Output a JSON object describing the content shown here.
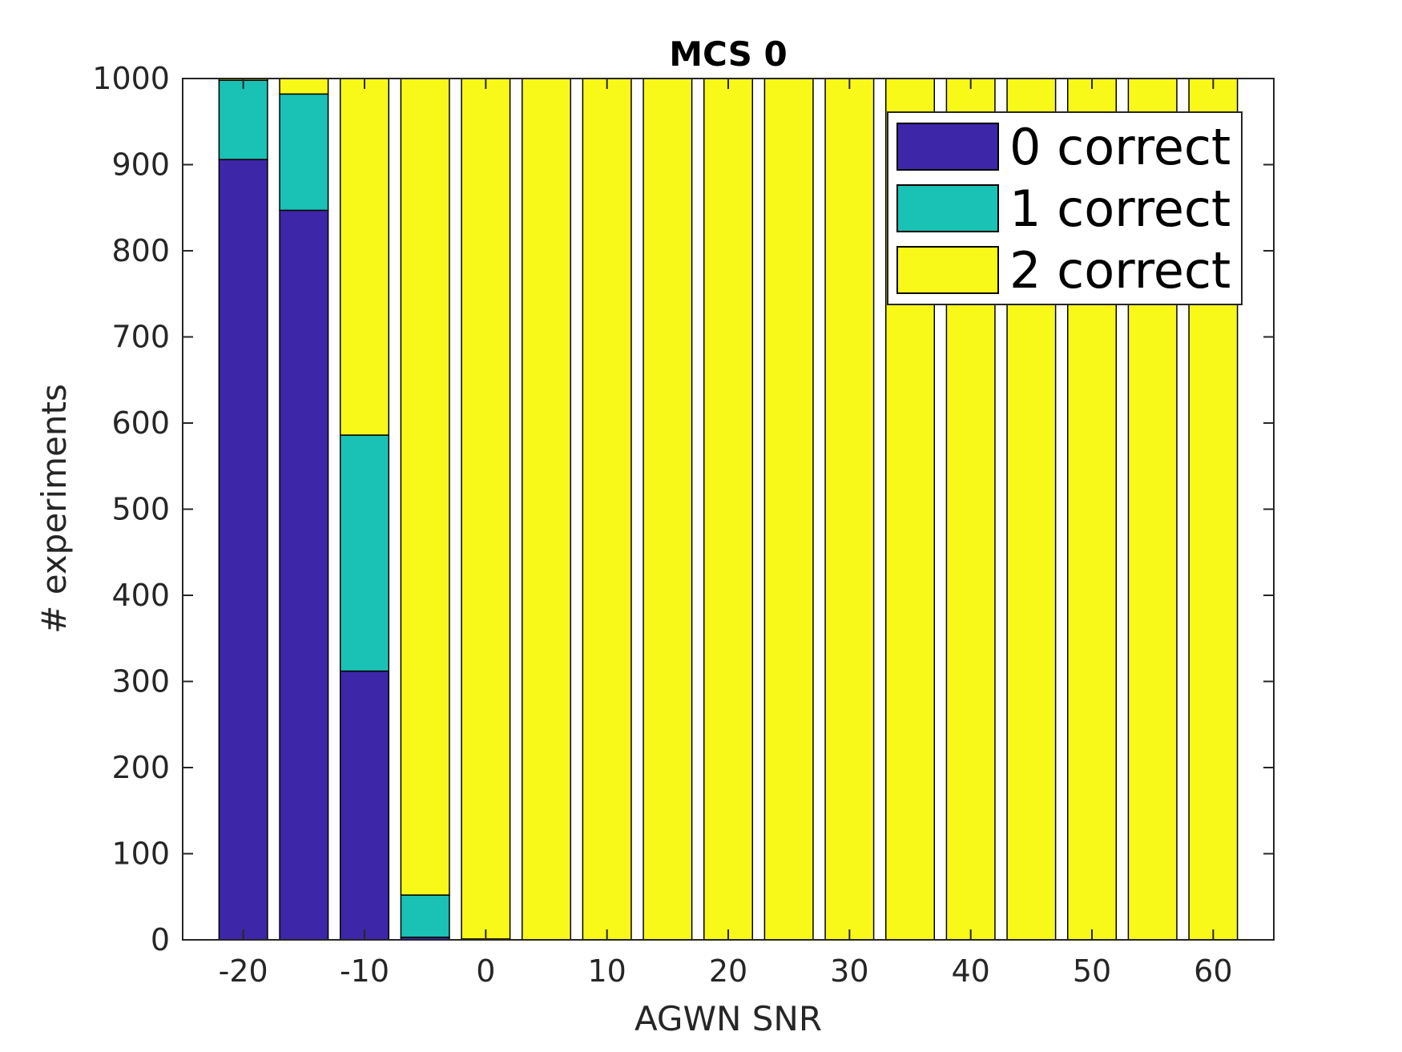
{
  "chart_data": {
    "type": "bar",
    "stacked": true,
    "title": "MCS 0",
    "xlabel": "AGWN SNR",
    "ylabel": "# experiments",
    "x": [
      -20,
      -15,
      -10,
      -5,
      0,
      5,
      10,
      15,
      20,
      25,
      30,
      35,
      40,
      45,
      50,
      55,
      60
    ],
    "xlim": [
      -25,
      65
    ],
    "ylim": [
      0,
      1000
    ],
    "xticks": [
      -20,
      -10,
      0,
      10,
      20,
      30,
      40,
      50,
      60
    ],
    "yticks": [
      0,
      100,
      200,
      300,
      400,
      500,
      600,
      700,
      800,
      900,
      1000
    ],
    "grid": false,
    "legend_position": "top-right",
    "series": [
      {
        "name": "0 correct",
        "color": "#3e26a8",
        "values": [
          906,
          847,
          312,
          3,
          0,
          0,
          0,
          0,
          0,
          0,
          0,
          0,
          0,
          0,
          0,
          0,
          0
        ]
      },
      {
        "name": "1 correct",
        "color": "#1ac1b5",
        "values": [
          92,
          135,
          274,
          49,
          1,
          0,
          0,
          0,
          0,
          0,
          0,
          0,
          0,
          0,
          0,
          0,
          0
        ]
      },
      {
        "name": "2 correct",
        "color": "#f8f918",
        "values": [
          2,
          18,
          414,
          948,
          999,
          1000,
          1000,
          1000,
          1000,
          1000,
          1000,
          1000,
          1000,
          1000,
          1000,
          1000,
          1000
        ]
      }
    ]
  }
}
